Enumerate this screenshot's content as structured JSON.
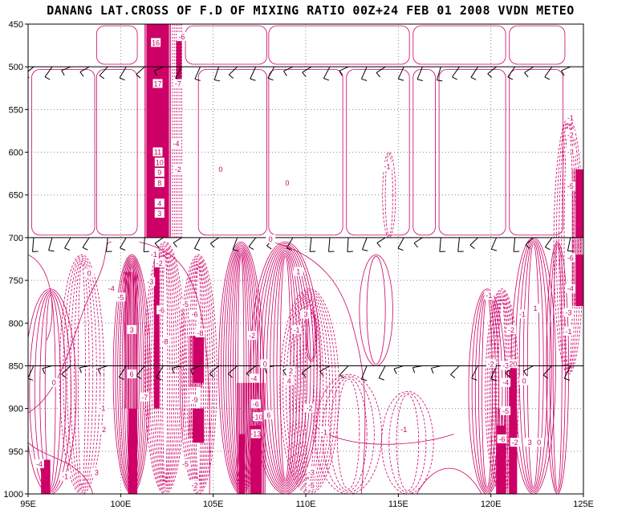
{
  "chart_data": {
    "type": "contour",
    "title": "DANANG LAT.CROSS OF F.D OF MIXING RATIO 00Z+24 FEB 01 2008 VVDN METEO",
    "x_ticks": [
      "95E",
      "100E",
      "105E",
      "110E",
      "115E",
      "120E",
      "125E"
    ],
    "y_ticks": [
      "450",
      "500",
      "550",
      "600",
      "650",
      "700",
      "750",
      "800",
      "850",
      "900",
      "950",
      "1000"
    ],
    "xlim": [
      95,
      125
    ],
    "ylim": [
      450,
      1000
    ],
    "y_inverted": true,
    "grid": "dotted",
    "contour_color": "#cc0066",
    "wind_barb_levels": [
      500,
      700,
      850,
      1000
    ],
    "contour_labels": [
      {
        "text": "17",
        "lon": 102.0,
        "p": 520
      },
      {
        "text": "16",
        "lon": 101.9,
        "p": 472
      },
      {
        "text": "-6",
        "lon": 103.3,
        "p": 465
      },
      {
        "text": "-7",
        "lon": 103.1,
        "p": 520
      },
      {
        "text": "11",
        "lon": 102.0,
        "p": 600
      },
      {
        "text": "10",
        "lon": 102.1,
        "p": 612
      },
      {
        "text": "9",
        "lon": 102.1,
        "p": 624
      },
      {
        "text": "8",
        "lon": 102.1,
        "p": 636
      },
      {
        "text": "4",
        "lon": 102.1,
        "p": 660
      },
      {
        "text": "3",
        "lon": 102.1,
        "p": 672
      },
      {
        "text": "-4",
        "lon": 103.0,
        "p": 590
      },
      {
        "text": "-2",
        "lon": 103.1,
        "p": 620
      },
      {
        "text": "0",
        "lon": 105.4,
        "p": 620
      },
      {
        "text": "0",
        "lon": 109.0,
        "p": 636
      },
      {
        "text": "-1",
        "lon": 114.4,
        "p": 617
      },
      {
        "text": "-1",
        "lon": 124.3,
        "p": 560
      },
      {
        "text": "-2",
        "lon": 124.3,
        "p": 580
      },
      {
        "text": "-3",
        "lon": 124.3,
        "p": 600
      },
      {
        "text": "-5",
        "lon": 124.3,
        "p": 640
      },
      {
        "text": "-6",
        "lon": 124.3,
        "p": 724
      },
      {
        "text": "-4",
        "lon": 124.3,
        "p": 760
      },
      {
        "text": "-3",
        "lon": 124.2,
        "p": 788
      },
      {
        "text": "-1",
        "lon": 124.2,
        "p": 810
      },
      {
        "text": "0",
        "lon": 98.3,
        "p": 742
      },
      {
        "text": "-4",
        "lon": 99.5,
        "p": 760
      },
      {
        "text": "-5",
        "lon": 100.0,
        "p": 770
      },
      {
        "text": "-1",
        "lon": 101.8,
        "p": 720
      },
      {
        "text": "-2",
        "lon": 102.1,
        "p": 730
      },
      {
        "text": "-3",
        "lon": 101.6,
        "p": 752
      },
      {
        "text": "-6",
        "lon": 102.2,
        "p": 785
      },
      {
        "text": "-8",
        "lon": 102.4,
        "p": 822
      },
      {
        "text": "-5",
        "lon": 103.5,
        "p": 778
      },
      {
        "text": "-6",
        "lon": 104.0,
        "p": 790
      },
      {
        "text": "-8",
        "lon": 104.3,
        "p": 812
      },
      {
        "text": "3",
        "lon": 100.6,
        "p": 808
      },
      {
        "text": "6",
        "lon": 100.6,
        "p": 860
      },
      {
        "text": "-9",
        "lon": 104.0,
        "p": 890
      },
      {
        "text": "-7",
        "lon": 101.3,
        "p": 887
      },
      {
        "text": "-1",
        "lon": 109.5,
        "p": 808
      },
      {
        "text": "3",
        "lon": 110.0,
        "p": 790
      },
      {
        "text": "1",
        "lon": 109.6,
        "p": 740
      },
      {
        "text": "0",
        "lon": 108.1,
        "p": 702
      },
      {
        "text": "-2",
        "lon": 107.1,
        "p": 815
      },
      {
        "text": "4",
        "lon": 109.1,
        "p": 868
      },
      {
        "text": "2",
        "lon": 109.2,
        "p": 856
      },
      {
        "text": "0",
        "lon": 107.8,
        "p": 848
      },
      {
        "text": "-4",
        "lon": 107.2,
        "p": 865
      },
      {
        "text": "-6",
        "lon": 107.3,
        "p": 895
      },
      {
        "text": "-10",
        "lon": 107.4,
        "p": 910
      },
      {
        "text": "-13",
        "lon": 107.3,
        "p": 930
      },
      {
        "text": "6",
        "lon": 108.0,
        "p": 908
      },
      {
        "text": "-1",
        "lon": 111.0,
        "p": 928
      },
      {
        "text": "-2",
        "lon": 110.2,
        "p": 900
      },
      {
        "text": "-3",
        "lon": 110.3,
        "p": 975
      },
      {
        "text": "-5",
        "lon": 110.3,
        "p": 990
      },
      {
        "text": "-1",
        "lon": 115.3,
        "p": 925
      },
      {
        "text": "0",
        "lon": 96.4,
        "p": 870
      },
      {
        "text": "-1",
        "lon": 99.0,
        "p": 900
      },
      {
        "text": "2",
        "lon": 99.1,
        "p": 925
      },
      {
        "text": "3",
        "lon": 98.7,
        "p": 975
      },
      {
        "text": "-4",
        "lon": 95.6,
        "p": 965
      },
      {
        "text": "-1",
        "lon": 97.0,
        "p": 980
      },
      {
        "text": "-5",
        "lon": 103.5,
        "p": 965
      },
      {
        "text": "-2",
        "lon": 104.0,
        "p": 990
      },
      {
        "text": "-1",
        "lon": 119.9,
        "p": 768
      },
      {
        "text": "-2",
        "lon": 120.0,
        "p": 848
      },
      {
        "text": "-3",
        "lon": 120.8,
        "p": 850
      },
      {
        "text": "-4",
        "lon": 120.8,
        "p": 870
      },
      {
        "text": "-5",
        "lon": 120.8,
        "p": 903
      },
      {
        "text": "-6",
        "lon": 120.6,
        "p": 936
      },
      {
        "text": "-2",
        "lon": 121.3,
        "p": 940
      },
      {
        "text": "3",
        "lon": 122.1,
        "p": 940
      },
      {
        "text": "0",
        "lon": 122.6,
        "p": 940
      },
      {
        "text": "1",
        "lon": 122.4,
        "p": 783
      },
      {
        "text": "-1",
        "lon": 121.7,
        "p": 790
      },
      {
        "text": "20",
        "lon": 121.2,
        "p": 848
      },
      {
        "text": "0",
        "lon": 121.8,
        "p": 868
      },
      {
        "text": "-2",
        "lon": 121.1,
        "p": 808
      }
    ]
  }
}
